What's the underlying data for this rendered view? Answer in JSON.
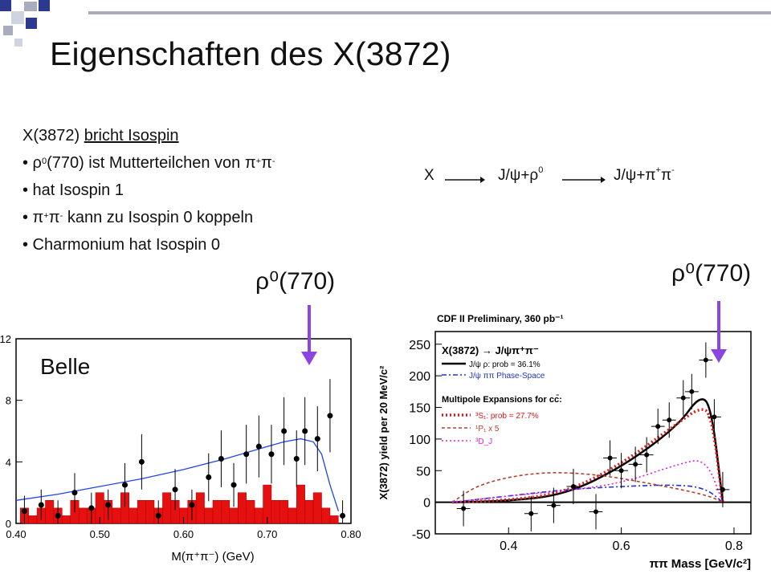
{
  "slide": {
    "title": "Eigenschaften des X(3872)",
    "bullets": {
      "heading_prefix": "X(3872) ",
      "heading_underlined": "bricht Isospin",
      "b1_a": "• ρ",
      "b1_sup": "0",
      "b1_b": "(770) ist  Mutterteilchen von π",
      "b1_sup2": "+",
      "b1_c": "π",
      "b1_sup3": "-",
      "b2": "• hat Isospin 1",
      "b3_a": "• π",
      "b3_sup": "+",
      "b3_b": "π",
      "b3_sup2": "-",
      "b3_c": " kann zu Isospin 0 koppeln",
      "b4": "• Charmonium hat Isospin 0"
    },
    "reaction": {
      "x": "X",
      "mid_a": "J/ψ+ρ",
      "mid_sup": "0",
      "end_a": "J/ψ+π",
      "end_sup": "+",
      "end_b": "π",
      "end_sup2": "-"
    },
    "rho_label": "ρ⁰(770)",
    "colors": {
      "deco_blue": "#2b3a8f",
      "deco_gray": "#a8acbc",
      "arrow": "#8b45e0"
    }
  },
  "chart_data": [
    {
      "type": "bar",
      "title": "Belle",
      "xlabel": "M(π⁺π⁻) (GeV)",
      "ylabel": "",
      "xlim": [
        0.4,
        0.8
      ],
      "ylim": [
        0,
        12
      ],
      "x_ticks": [
        "0.40",
        "0.50",
        "0.60",
        "0.70",
        "0.80"
      ],
      "y_ticks": [
        "0",
        "4",
        "8",
        "12"
      ],
      "hist_bins": [
        0.41,
        0.42,
        0.43,
        0.44,
        0.45,
        0.46,
        0.47,
        0.48,
        0.49,
        0.5,
        0.51,
        0.52,
        0.53,
        0.54,
        0.55,
        0.56,
        0.57,
        0.58,
        0.59,
        0.6,
        0.61,
        0.62,
        0.63,
        0.64,
        0.65,
        0.66,
        0.67,
        0.68,
        0.69,
        0.7,
        0.71,
        0.72,
        0.73,
        0.74,
        0.75,
        0.76,
        0.77,
        0.78
      ],
      "hist_values": [
        1.0,
        0.5,
        1.0,
        1.5,
        1.0,
        0.5,
        1.5,
        1.0,
        1.0,
        2.0,
        1.5,
        1.0,
        2.0,
        1.0,
        1.5,
        1.5,
        1.0,
        2.0,
        1.5,
        1.0,
        1.5,
        2.0,
        1.0,
        1.5,
        1.5,
        1.0,
        2.0,
        1.5,
        1.0,
        2.5,
        1.5,
        1.5,
        1.0,
        2.5,
        1.5,
        2.0,
        1.0,
        0.5
      ],
      "points": [
        {
          "x": 0.41,
          "y": 0.8
        },
        {
          "x": 0.43,
          "y": 1.2
        },
        {
          "x": 0.45,
          "y": 0.5
        },
        {
          "x": 0.47,
          "y": 2.0
        },
        {
          "x": 0.49,
          "y": 1.0
        },
        {
          "x": 0.51,
          "y": 1.2
        },
        {
          "x": 0.53,
          "y": 2.5
        },
        {
          "x": 0.55,
          "y": 4.0
        },
        {
          "x": 0.57,
          "y": 0.5
        },
        {
          "x": 0.59,
          "y": 2.2
        },
        {
          "x": 0.61,
          "y": 1.2
        },
        {
          "x": 0.63,
          "y": 3.0
        },
        {
          "x": 0.645,
          "y": 4.2
        },
        {
          "x": 0.66,
          "y": 2.5
        },
        {
          "x": 0.675,
          "y": 4.5
        },
        {
          "x": 0.69,
          "y": 5.0
        },
        {
          "x": 0.705,
          "y": 4.5
        },
        {
          "x": 0.72,
          "y": 6.0
        },
        {
          "x": 0.735,
          "y": 4.2
        },
        {
          "x": 0.745,
          "y": 6.0
        },
        {
          "x": 0.76,
          "y": 5.5
        },
        {
          "x": 0.775,
          "y": 7.0
        },
        {
          "x": 0.79,
          "y": 0.5
        }
      ],
      "fit_curve": [
        [
          0.4,
          1.5
        ],
        [
          0.45,
          1.9
        ],
        [
          0.5,
          2.4
        ],
        [
          0.55,
          2.9
        ],
        [
          0.6,
          3.5
        ],
        [
          0.65,
          4.2
        ],
        [
          0.7,
          5.0
        ],
        [
          0.72,
          5.3
        ],
        [
          0.74,
          5.5
        ],
        [
          0.755,
          5.3
        ],
        [
          0.765,
          4.5
        ],
        [
          0.775,
          2.5
        ],
        [
          0.785,
          0.8
        ]
      ]
    },
    {
      "type": "scatter",
      "title": "CDF II Preliminary, 360 pb⁻¹",
      "xlabel": "ππ Mass [GeV/c²]",
      "ylabel": "X(3872) yield per 20 MeV/c²",
      "xlim": [
        0.27,
        0.83
      ],
      "ylim": [
        -50,
        270
      ],
      "x_ticks": [
        "0.4",
        "0.6",
        "0.8"
      ],
      "y_ticks": [
        "-50",
        "0",
        "50",
        "100",
        "150",
        "200",
        "250"
      ],
      "legend_title": "X(3872) → J/ψπ⁺π⁻",
      "legend_multipole": "Multipole Expansions for cc̄:",
      "series": [
        {
          "name": "J/ψ ρ: prob = 36.1%",
          "color": "#000000",
          "style": "solid",
          "values": [
            [
              0.3,
              0
            ],
            [
              0.4,
              2
            ],
            [
              0.5,
              12
            ],
            [
              0.6,
              55
            ],
            [
              0.7,
              120
            ],
            [
              0.74,
              170
            ],
            [
              0.76,
              150
            ],
            [
              0.78,
              0
            ]
          ]
        },
        {
          "name": "J/ψ ππ Phase-Space",
          "color": "#2233cc",
          "style": "dashdot",
          "values": [
            [
              0.3,
              0
            ],
            [
              0.4,
              10
            ],
            [
              0.5,
              20
            ],
            [
              0.6,
              25
            ],
            [
              0.7,
              28
            ],
            [
              0.75,
              22
            ],
            [
              0.78,
              0
            ]
          ]
        },
        {
          "name": "³S₁: prob = 27.7%",
          "color": "#e01818",
          "style": "dotted",
          "values": [
            [
              0.3,
              0
            ],
            [
              0.4,
              3
            ],
            [
              0.5,
              15
            ],
            [
              0.6,
              60
            ],
            [
              0.7,
              125
            ],
            [
              0.74,
              150
            ],
            [
              0.76,
              140
            ],
            [
              0.78,
              0
            ]
          ]
        },
        {
          "name": "¹P₁ x 5",
          "color": "#b04030",
          "style": "dashed",
          "values": [
            [
              0.3,
              0
            ],
            [
              0.35,
              30
            ],
            [
              0.45,
              48
            ],
            [
              0.55,
              45
            ],
            [
              0.65,
              30
            ],
            [
              0.75,
              12
            ],
            [
              0.78,
              0
            ]
          ]
        },
        {
          "name": "³D_J",
          "color": "#e020e0",
          "style": "dotted",
          "values": [
            [
              0.3,
              0
            ],
            [
              0.4,
              10
            ],
            [
              0.5,
              18
            ],
            [
              0.6,
              30
            ],
            [
              0.7,
              60
            ],
            [
              0.75,
              70
            ],
            [
              0.78,
              0
            ]
          ]
        }
      ],
      "points": [
        {
          "x": 0.32,
          "y": -10
        },
        {
          "x": 0.44,
          "y": -18
        },
        {
          "x": 0.48,
          "y": -5
        },
        {
          "x": 0.515,
          "y": 25
        },
        {
          "x": 0.555,
          "y": -15
        },
        {
          "x": 0.58,
          "y": 70
        },
        {
          "x": 0.6,
          "y": 50
        },
        {
          "x": 0.625,
          "y": 60
        },
        {
          "x": 0.645,
          "y": 75
        },
        {
          "x": 0.665,
          "y": 120
        },
        {
          "x": 0.685,
          "y": 130
        },
        {
          "x": 0.71,
          "y": 165
        },
        {
          "x": 0.725,
          "y": 175
        },
        {
          "x": 0.75,
          "y": 225
        },
        {
          "x": 0.765,
          "y": 135
        },
        {
          "x": 0.78,
          "y": 20
        }
      ]
    }
  ]
}
